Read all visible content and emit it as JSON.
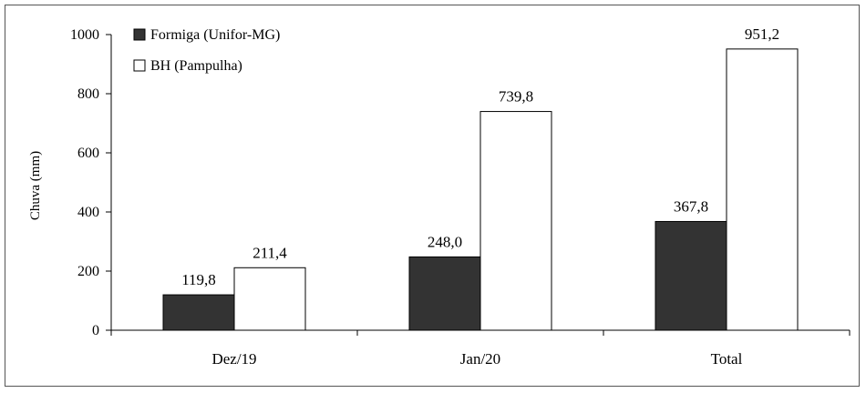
{
  "chart_data": {
    "type": "bar",
    "ylabel": "Chuva (mm)",
    "xlabel": "",
    "ylim": [
      0,
      1000
    ],
    "yticks": [
      0,
      200,
      400,
      600,
      800,
      1000
    ],
    "ytick_labels": [
      "0",
      "200",
      "400",
      "600",
      "800",
      "1000"
    ],
    "categories": [
      "Dez/19",
      "Jan/20",
      "Total"
    ],
    "series": [
      {
        "name": "Formiga (Unifor-MG)",
        "color": "#333333",
        "values": [
          119.8,
          248.0,
          367.8
        ],
        "value_labels": [
          "119,8",
          "248,0",
          "367,8"
        ]
      },
      {
        "name": "BH (Pampulha)",
        "color": "#ffffff",
        "values": [
          211.4,
          739.8,
          951.2
        ],
        "value_labels": [
          "211,4",
          "739,8",
          "951,2"
        ]
      }
    ],
    "legend_position": "top-left",
    "grid": false
  }
}
